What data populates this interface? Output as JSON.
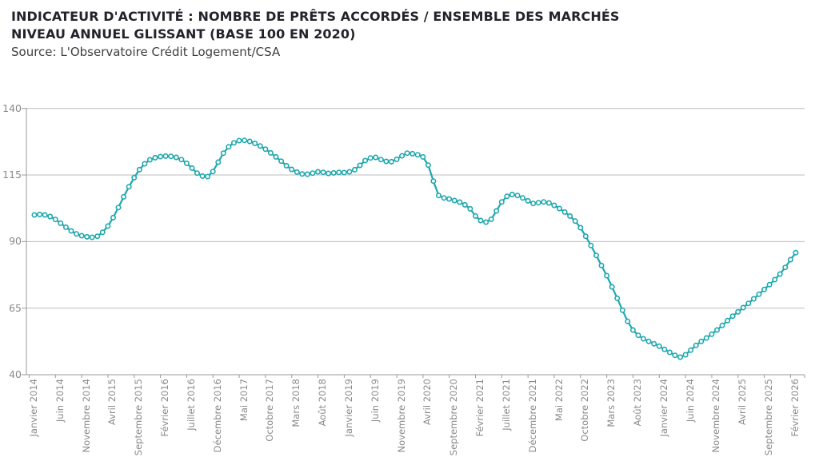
{
  "header": {
    "title_line1": "INDICATEUR D'ACTIVITÉ : NOMBRE DE PRÊTS ACCORDÉS / ENSEMBLE DES MARCHÉS",
    "title_line2": "NIVEAU ANNUEL GLISSANT (BASE 100 EN 2020)",
    "source": "Source: L'Observatoire Crédit Logement/CSA"
  },
  "chart_data": {
    "type": "line",
    "title": "INDICATEUR D'ACTIVITÉ : NOMBRE DE PRÊTS ACCORDÉS / ENSEMBLE DES MARCHÉS — NIVEAU ANNUEL GLISSANT (BASE 100 EN 2020)",
    "legend": "none",
    "grid": "horizontal",
    "line_color": "#1FA8AE",
    "marker": "open-circle",
    "ylim": [
      40,
      140
    ],
    "y_ticks": [
      140,
      115,
      90,
      65,
      40
    ],
    "x_start": "Janvier 2014",
    "x_end": "Février 2026",
    "points_per_tick": 5,
    "n_points": 146,
    "x_tick_labels": [
      "Janvier 2014",
      "Juin 2014",
      "Novembre 2014",
      "Avril 2015",
      "Septembre 2015",
      "Février 2016",
      "Juillet 2016",
      "Décembre 2016",
      "Mai 2017",
      "Octobre 2017",
      "Mars 2018",
      "Août 2018",
      "Janvier 2019",
      "Juin 2019",
      "Novembre 2019",
      "Avril 2020",
      "Septembre 2020",
      "Février 2021",
      "Juillet 2021",
      "Décembre 2021",
      "Mai 2022",
      "Octobre 2022",
      "Mars 2023",
      "Août 2023",
      "Janvier 2024",
      "Juin 2024",
      "Novembre 2024",
      "Avril 2025",
      "Septembre 2025",
      "Février 2026"
    ],
    "series": [
      {
        "name": "Nombre de prêts accordés / ensemble des marchés (base 100 en 2020)",
        "values": [
          100.0,
          100.2,
          100.0,
          99.4,
          98.3,
          96.9,
          95.4,
          94.0,
          92.9,
          92.2,
          91.8,
          91.6,
          92.0,
          93.5,
          95.8,
          99.0,
          102.8,
          106.8,
          110.6,
          114.0,
          117.0,
          119.2,
          120.7,
          121.5,
          121.9,
          122.1,
          122.0,
          121.6,
          120.8,
          119.4,
          117.6,
          115.7,
          114.6,
          114.4,
          116.3,
          119.8,
          123.2,
          125.6,
          127.1,
          127.9,
          128.0,
          127.6,
          126.9,
          125.9,
          124.7,
          123.3,
          121.8,
          120.2,
          118.5,
          117.1,
          116.1,
          115.4,
          115.3,
          115.7,
          116.2,
          116.0,
          115.6,
          115.8,
          116.0,
          115.9,
          116.2,
          117.0,
          118.6,
          120.4,
          121.4,
          121.6,
          120.8,
          120.1,
          120.0,
          120.9,
          122.2,
          123.2,
          123.0,
          122.6,
          121.8,
          118.7,
          112.7,
          107.3,
          106.4,
          106.0,
          105.4,
          104.8,
          103.8,
          102.3,
          99.6,
          97.9,
          97.3,
          98.4,
          101.5,
          104.9,
          107.0,
          107.7,
          107.3,
          106.4,
          105.3,
          104.3,
          104.6,
          104.9,
          104.5,
          103.6,
          102.4,
          101.1,
          99.6,
          97.7,
          95.2,
          92.0,
          88.5,
          84.8,
          81.0,
          77.2,
          73.0,
          68.7,
          64.2,
          60.0,
          56.8,
          54.8,
          53.5,
          52.5,
          51.6,
          50.7,
          49.5,
          48.4,
          47.3,
          46.6,
          47.5,
          49.2,
          51.0,
          52.5,
          53.8,
          55.2,
          56.8,
          58.5,
          60.3,
          62.0,
          63.6,
          65.2,
          66.8,
          68.5,
          70.2,
          72.0,
          73.8,
          75.7,
          77.8,
          80.3,
          83.2,
          85.8
        ]
      }
    ]
  }
}
